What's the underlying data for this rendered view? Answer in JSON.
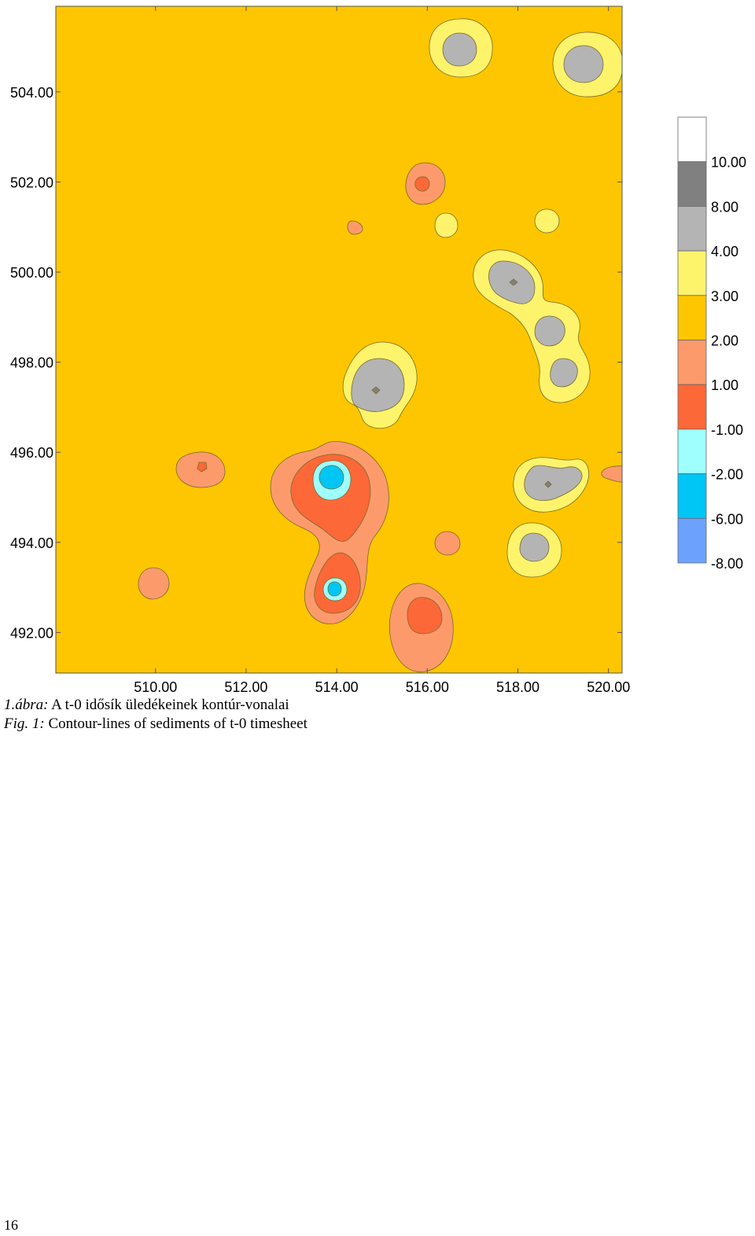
{
  "chart_data": {
    "type": "contour",
    "title": "",
    "xlabel": "",
    "ylabel": "",
    "xlim": [
      507.8,
      520.3
    ],
    "ylim": [
      491.1,
      505.9
    ],
    "x_ticks": [
      "510.00",
      "512.00",
      "514.00",
      "516.00",
      "518.00",
      "520.00"
    ],
    "y_ticks": [
      "504.00",
      "502.00",
      "500.00",
      "498.00",
      "496.00",
      "494.00",
      "492.00"
    ],
    "legend": {
      "placement": "right",
      "levels": [
        "10.00",
        "8.00",
        "4.00",
        "3.00",
        "2.00",
        "1.00",
        "-1.00",
        "-2.00",
        "-6.00",
        "-8.00"
      ],
      "colors": [
        "#ffffff",
        "#808080",
        "#b4b4b4",
        "#fdf46c",
        "#fdc600",
        "#fd9a6c",
        "#fd6838",
        "#9efffe",
        "#00c6f6",
        "#6ca2fd"
      ]
    },
    "background_band": "2.00 to 3.00",
    "features": [
      {
        "x": 516.1,
        "y": 504.2,
        "bands": [
          "3.00-4.00",
          "4.00-8.00"
        ]
      },
      {
        "x": 519.0,
        "y": 503.5,
        "bands": [
          "3.00-4.00",
          "4.00-8.00"
        ]
      },
      {
        "x": 515.2,
        "y": 501.9,
        "bands": [
          "1.00-2.00",
          "-1.00-1.00"
        ]
      },
      {
        "x": 514.5,
        "y": 500.8,
        "bands": [
          "1.00-2.00"
        ]
      },
      {
        "x": 516.7,
        "y": 500.9,
        "bands": [
          "3.00-4.00"
        ]
      },
      {
        "x": 518.9,
        "y": 501.0,
        "bands": [
          "3.00-4.00"
        ]
      },
      {
        "x": 518.2,
        "y": 499.9,
        "bands": [
          "3.00-4.00",
          "4.00-8.00",
          "8.00-10.00"
        ]
      },
      {
        "x": 518.9,
        "y": 498.7,
        "bands": [
          "3.00-4.00",
          "4.00-8.00"
        ]
      },
      {
        "x": 519.2,
        "y": 497.7,
        "bands": [
          "3.00-4.00",
          "4.00-8.00"
        ]
      },
      {
        "x": 515.1,
        "y": 497.4,
        "bands": [
          "3.00-4.00",
          "4.00-8.00",
          "8.00-10.00"
        ]
      },
      {
        "x": 511.4,
        "y": 495.6,
        "bands": [
          "1.00-2.00",
          "-1.00-1.00"
        ]
      },
      {
        "x": 514.3,
        "y": 495.0,
        "bands": [
          "1.00-2.00",
          "-1.00-1.00",
          "-2.00--1.00",
          "-6.00--2.00"
        ]
      },
      {
        "x": 514.2,
        "y": 493.0,
        "bands": [
          "-1.00-1.00",
          "-2.00--1.00",
          "-6.00--2.00"
        ]
      },
      {
        "x": 516.2,
        "y": 492.3,
        "bands": [
          "1.00-2.00",
          "-1.00-1.00"
        ]
      },
      {
        "x": 518.7,
        "y": 495.3,
        "bands": [
          "3.00-4.00",
          "4.00-8.00",
          "8.00-10.00"
        ]
      },
      {
        "x": 520.1,
        "y": 495.5,
        "bands": [
          "1.00-2.00"
        ]
      },
      {
        "x": 516.7,
        "y": 494.0,
        "bands": [
          "1.00-2.00"
        ]
      },
      {
        "x": 518.4,
        "y": 493.8,
        "bands": [
          "3.00-4.00",
          "4.00-8.00"
        ]
      },
      {
        "x": 509.9,
        "y": 493.1,
        "bands": [
          "1.00-2.00"
        ]
      }
    ]
  },
  "caption_hu": {
    "prefix": "1.ábra:",
    "text": " A t-0 idősík üledékeinek kontúr-vonalai"
  },
  "caption_en": {
    "prefix": "Fig. 1:",
    "text": " Contour-lines of sediments of t-0 timesheet"
  },
  "page_number": "16"
}
